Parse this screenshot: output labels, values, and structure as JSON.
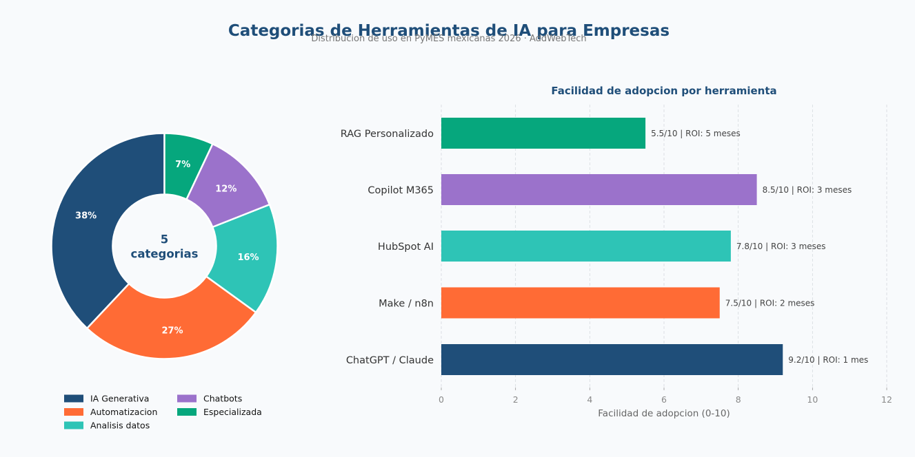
{
  "title": "Categorias de Herramientas de IA para Empresas",
  "subtitle": "Distribucion de uso en PyMES mexicanas 2026  ·  AddWebTech",
  "chart_data": [
    {
      "type": "pie",
      "variant": "donut",
      "center_label": [
        "5",
        "categorias"
      ],
      "categories": [
        "IA Generativa",
        "Automatizacion",
        "Analisis datos",
        "Chatbots",
        "Especializada"
      ],
      "values": [
        38,
        27,
        16,
        12,
        7
      ],
      "value_labels": [
        "38%",
        "27%",
        "16%",
        "12%",
        "7%"
      ],
      "colors": [
        "#1f4e79",
        "#ff6b35",
        "#2ec4b6",
        "#9b72cb",
        "#06a77d"
      ],
      "legend": {
        "placement": "bottom",
        "columns": [
          [
            "IA Generativa",
            "Automatizacion",
            "Analisis datos"
          ],
          [
            "Chatbots",
            "Especializada"
          ]
        ]
      }
    },
    {
      "type": "bar",
      "orientation": "horizontal",
      "title": "Facilidad de adopcion por herramienta",
      "xlabel": "Facilidad de adopcion (0-10)",
      "xlim": [
        0,
        12
      ],
      "xticks": [
        "0",
        "2",
        "4",
        "6",
        "8",
        "10",
        "12"
      ],
      "grid": "vertical dashed",
      "categories": [
        "ChatGPT / Claude",
        "Make / n8n",
        "HubSpot AI",
        "Copilot M365",
        "RAG Personalizado"
      ],
      "values": [
        9.2,
        7.5,
        7.8,
        8.5,
        5.5
      ],
      "data_labels": [
        "9.2/10  |  ROI: 1 mes",
        "7.5/10  |  ROI: 2 meses",
        "7.8/10  |  ROI: 3 meses",
        "8.5/10  |  ROI: 3 meses",
        "5.5/10  |  ROI: 5 meses"
      ],
      "colors": [
        "#1f4e79",
        "#ff6b35",
        "#2ec4b6",
        "#9b72cb",
        "#06a77d"
      ]
    }
  ]
}
